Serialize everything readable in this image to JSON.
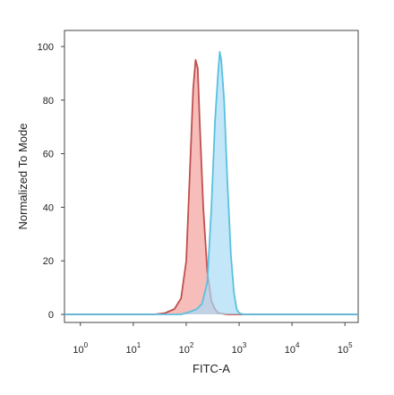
{
  "chart_data": {
    "type": "area",
    "xlabel": "FITC-A",
    "ylabel": "Normalized To Mode",
    "x_scale": "log",
    "xlim": [
      0.5,
      178000
    ],
    "ylim": [
      -3,
      106
    ],
    "y_ticks": [
      {
        "value": 0,
        "label": "0"
      },
      {
        "value": 20,
        "label": "20"
      },
      {
        "value": 40,
        "label": "40"
      },
      {
        "value": 60,
        "label": "60"
      },
      {
        "value": 80,
        "label": "80"
      },
      {
        "value": 100,
        "label": "100"
      }
    ],
    "x_ticks": [
      {
        "value": 1,
        "base": "10",
        "exp": "0"
      },
      {
        "value": 10,
        "base": "10",
        "exp": "1"
      },
      {
        "value": 100,
        "base": "10",
        "exp": "2"
      },
      {
        "value": 1000,
        "base": "10",
        "exp": "3"
      },
      {
        "value": 10000,
        "base": "10",
        "exp": "4"
      },
      {
        "value": 100000,
        "base": "10",
        "exp": "5"
      }
    ],
    "grid": false,
    "series": [
      {
        "line_color": "#c0504d",
        "fill_color": "#f2a19c",
        "points": [
          [
            0.5,
            0
          ],
          [
            25,
            0
          ],
          [
            40,
            0.5
          ],
          [
            60,
            2
          ],
          [
            80,
            6
          ],
          [
            100,
            20
          ],
          [
            120,
            58
          ],
          [
            135,
            84
          ],
          [
            150,
            95
          ],
          [
            165,
            92
          ],
          [
            180,
            72
          ],
          [
            210,
            40
          ],
          [
            250,
            16
          ],
          [
            300,
            5
          ],
          [
            350,
            2
          ],
          [
            400,
            0.5
          ],
          [
            600,
            0
          ],
          [
            178000,
            0
          ]
        ]
      },
      {
        "line_color": "#5bc0de",
        "fill_color": "#a9dcf5",
        "points": [
          [
            0.5,
            0
          ],
          [
            80,
            0
          ],
          [
            120,
            1
          ],
          [
            160,
            2
          ],
          [
            200,
            4
          ],
          [
            250,
            12
          ],
          [
            300,
            40
          ],
          [
            350,
            72
          ],
          [
            400,
            90
          ],
          [
            430,
            98
          ],
          [
            460,
            95
          ],
          [
            520,
            80
          ],
          [
            600,
            50
          ],
          [
            700,
            22
          ],
          [
            800,
            8
          ],
          [
            900,
            2
          ],
          [
            1000,
            0.5
          ],
          [
            1200,
            0
          ],
          [
            178000,
            0
          ]
        ]
      }
    ]
  }
}
